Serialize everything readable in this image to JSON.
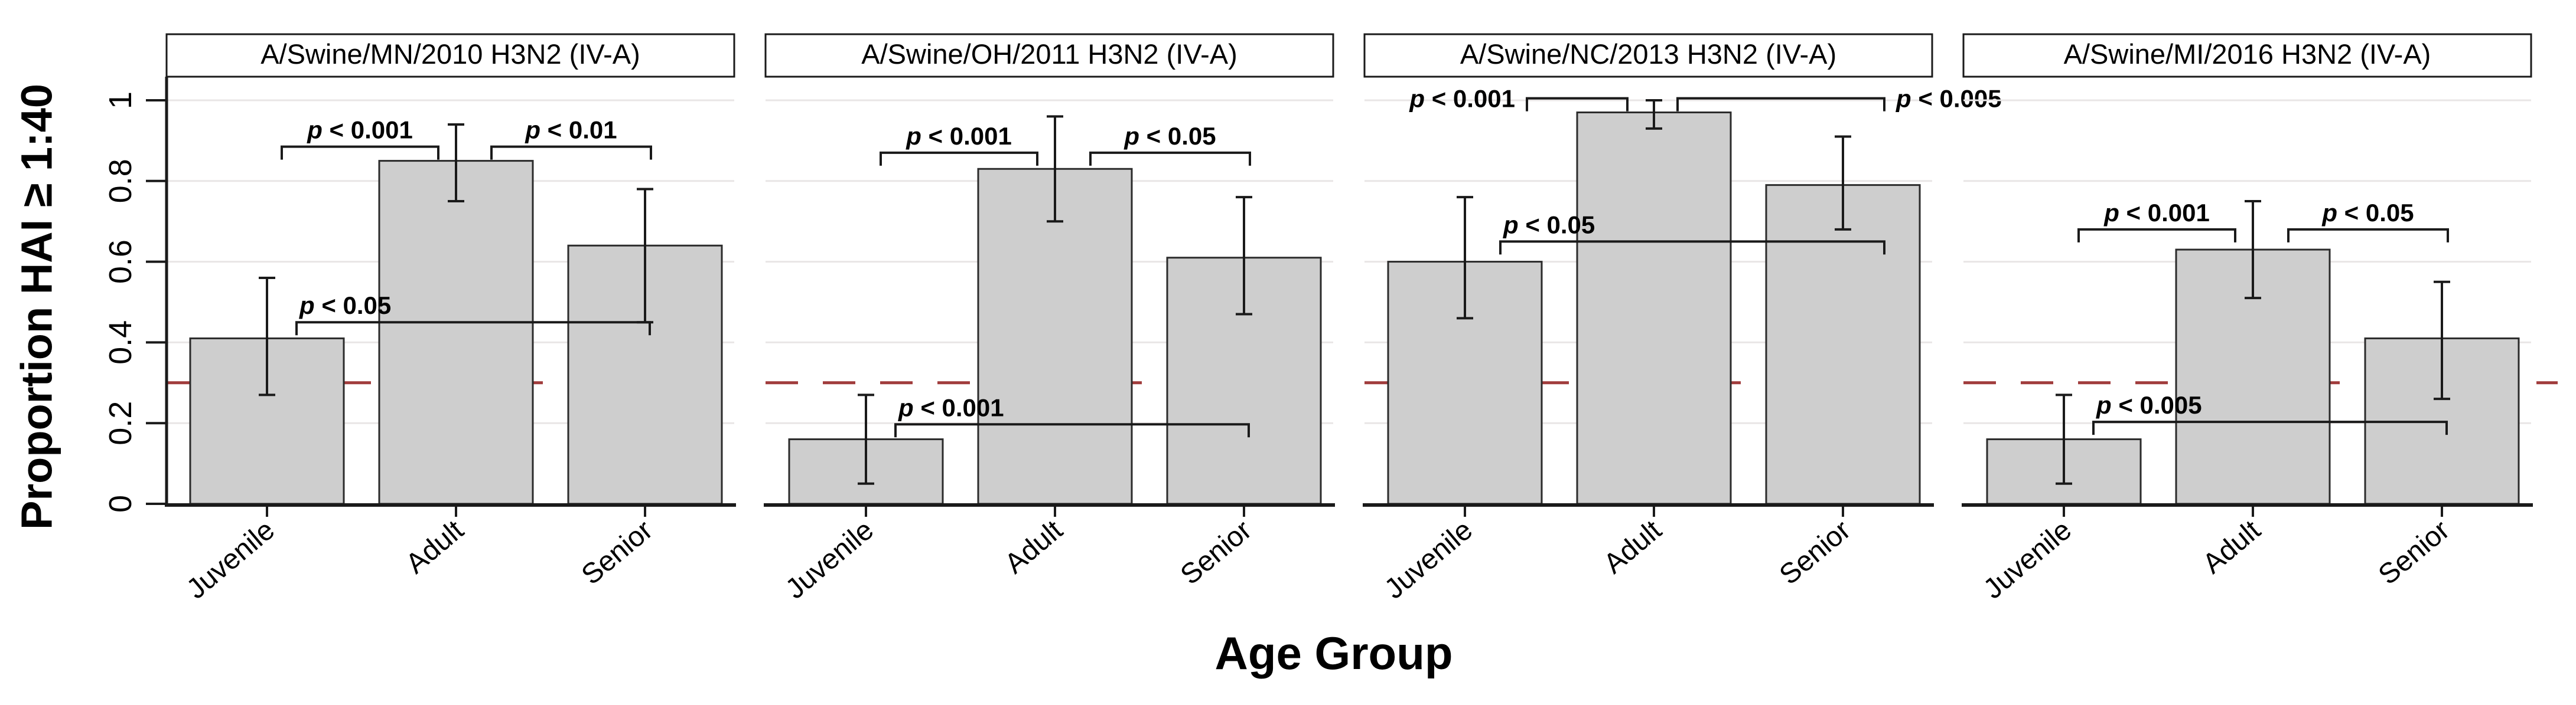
{
  "figure": {
    "y_axis_label": "Proportion HAI ≥ 1:40",
    "x_axis_label": "Age Group",
    "colors": {
      "bar_fill": "#cecece",
      "bar_border": "#2b2b2b",
      "axis": "#1a1a1a",
      "grid": "#e9e6e6",
      "threshold": "#a03c3c",
      "text": "#000000",
      "panel_box_fill": "#ffffff"
    }
  },
  "chart_data": {
    "type": "bar",
    "categories": [
      "Juvenile",
      "Adult",
      "Senior"
    ],
    "xlabel": "Age Group",
    "ylabel": "Proportion HAI ≥ 1:40",
    "ylim": [
      0,
      1
    ],
    "yticks": [
      0,
      0.2,
      0.4,
      0.6,
      0.8,
      1
    ],
    "ytick_labels": [
      "0",
      "0.2",
      "0.4",
      "0.6",
      "0.8",
      "1"
    ],
    "grid": true,
    "threshold_line": 0.3,
    "legend": "none",
    "panels": [
      {
        "title": "A/Swine/MN/2010 H3N2 (IV-A)",
        "values": [
          0.41,
          0.85,
          0.64
        ],
        "ci_low": [
          0.27,
          0.75,
          0.45
        ],
        "ci_high": [
          0.56,
          0.94,
          0.78
        ],
        "comparisons": [
          {
            "groups": [
              0,
              1
            ],
            "label": "p < 0.001",
            "y": 0.885,
            "label_pos": "above"
          },
          {
            "groups": [
              1,
              2
            ],
            "label": "p < 0.01",
            "y": 0.885,
            "label_pos": "above"
          },
          {
            "groups": [
              0,
              2
            ],
            "label": "p < 0.05",
            "y": 0.45,
            "label_pos": "above-left"
          }
        ]
      },
      {
        "title": "A/Swine/OH/2011 H3N2 (IV-A)",
        "values": [
          0.16,
          0.83,
          0.61
        ],
        "ci_low": [
          0.05,
          0.7,
          0.47
        ],
        "ci_high": [
          0.27,
          0.96,
          0.76
        ],
        "comparisons": [
          {
            "groups": [
              0,
              1
            ],
            "label": "p < 0.001",
            "y": 0.87,
            "label_pos": "above"
          },
          {
            "groups": [
              1,
              2
            ],
            "label": "p < 0.05",
            "y": 0.87,
            "label_pos": "above"
          },
          {
            "groups": [
              0,
              2
            ],
            "label": "p < 0.001",
            "y": 0.197,
            "label_pos": "above-left"
          }
        ]
      },
      {
        "title": "A/Swine/NC/2013 H3N2 (IV-A)",
        "values": [
          0.6,
          0.97,
          0.79
        ],
        "ci_low": [
          0.46,
          0.93,
          0.68
        ],
        "ci_high": [
          0.76,
          1.0,
          0.91
        ],
        "comparisons": [
          {
            "groups": [
              0,
              1
            ],
            "label": "p < 0.001",
            "y": 1.005,
            "label_pos": "left"
          },
          {
            "groups": [
              1,
              2
            ],
            "label": "p < 0.005",
            "y": 1.005,
            "label_pos": "right"
          },
          {
            "groups": [
              0,
              2
            ],
            "label": "p < 0.05",
            "y": 0.65,
            "label_pos": "above-left"
          }
        ]
      },
      {
        "title": "A/Swine/MI/2016 H3N2 (IV-A)",
        "values": [
          0.16,
          0.63,
          0.41
        ],
        "ci_low": [
          0.05,
          0.51,
          0.26
        ],
        "ci_high": [
          0.27,
          0.75,
          0.55
        ],
        "comparisons": [
          {
            "groups": [
              0,
              1
            ],
            "label": "p < 0.001",
            "y": 0.68,
            "label_pos": "above"
          },
          {
            "groups": [
              1,
              2
            ],
            "label": "p < 0.05",
            "y": 0.68,
            "label_pos": "above"
          },
          {
            "groups": [
              0,
              2
            ],
            "label": "p < 0.005",
            "y": 0.203,
            "label_pos": "above-left"
          }
        ]
      }
    ]
  }
}
